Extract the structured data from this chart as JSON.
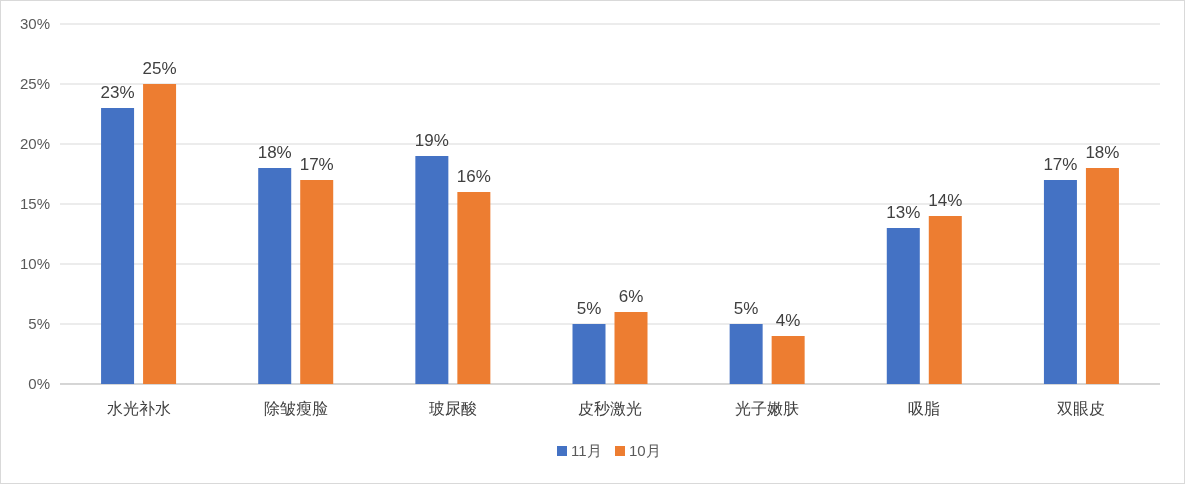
{
  "chart_data": {
    "type": "bar",
    "categories": [
      "水光补水",
      "除皱瘦脸",
      "玻尿酸",
      "皮秒激光",
      "光子嫩肤",
      "吸脂",
      "双眼皮"
    ],
    "series": [
      {
        "name": "11月",
        "color": "#4472c4",
        "values": [
          23,
          18,
          19,
          5,
          5,
          13,
          17
        ],
        "value_labels": [
          "23%",
          "18%",
          "19%",
          "5%",
          "5%",
          "13%",
          "17%"
        ]
      },
      {
        "name": "10月",
        "color": "#ed7d31",
        "values": [
          25,
          17,
          16,
          6,
          4,
          14,
          18
        ],
        "value_labels": [
          "25%",
          "17%",
          "16%",
          "6%",
          "4%",
          "14%",
          "18%"
        ]
      }
    ],
    "ylim": [
      0,
      30
    ],
    "yticks": [
      {
        "value": 0,
        "label": "0%"
      },
      {
        "value": 5,
        "label": "5%"
      },
      {
        "value": 10,
        "label": "10%"
      },
      {
        "value": 15,
        "label": "15%"
      },
      {
        "value": 20,
        "label": "20%"
      },
      {
        "value": 25,
        "label": "25%"
      },
      {
        "value": 30,
        "label": "30%"
      }
    ],
    "grid": "y",
    "legend": "bottom"
  }
}
